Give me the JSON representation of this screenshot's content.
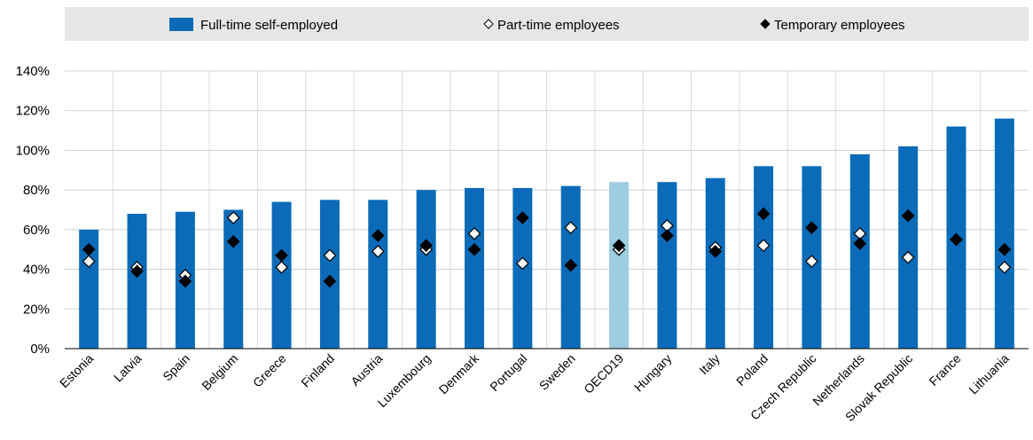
{
  "chart_data": {
    "type": "bar",
    "categories": [
      "Estonia",
      "Latvia",
      "Spain",
      "Belgium",
      "Greece",
      "Finland",
      "Austria",
      "Luxembourg",
      "Denmark",
      "Portugal",
      "Sweden",
      "OECD19",
      "Hungary",
      "Italy",
      "Poland",
      "Czech Republic",
      "Netherlands",
      "Slovak Republic",
      "France",
      "Lithuania"
    ],
    "series": [
      {
        "name": "Full-time self-employed",
        "kind": "bar",
        "color": "#0b6bb8",
        "highlight_color": "#9ccde0",
        "highlight_category": "OECD19",
        "values": [
          60,
          68,
          69,
          70,
          74,
          75,
          75,
          80,
          81,
          81,
          82,
          84,
          84,
          86,
          92,
          92,
          98,
          102,
          112,
          116
        ]
      },
      {
        "name": "Part-time employees",
        "kind": "marker",
        "marker": "diamond-open",
        "values": [
          44,
          41,
          37,
          66,
          41,
          47,
          49,
          50,
          58,
          43,
          61,
          50,
          62,
          51,
          52,
          44,
          58,
          46,
          55,
          41
        ]
      },
      {
        "name": "Temporary employees",
        "kind": "marker",
        "marker": "diamond-filled",
        "values": [
          50,
          39,
          34,
          54,
          47,
          34,
          57,
          52,
          50,
          66,
          42,
          52,
          57,
          49,
          68,
          61,
          53,
          67,
          55,
          50
        ]
      }
    ],
    "y_ticks": [
      "0%",
      "20%",
      "40%",
      "60%",
      "80%",
      "100%",
      "120%",
      "140%"
    ],
    "ylim": [
      0,
      140
    ],
    "grid": true,
    "legend_position": "top"
  }
}
